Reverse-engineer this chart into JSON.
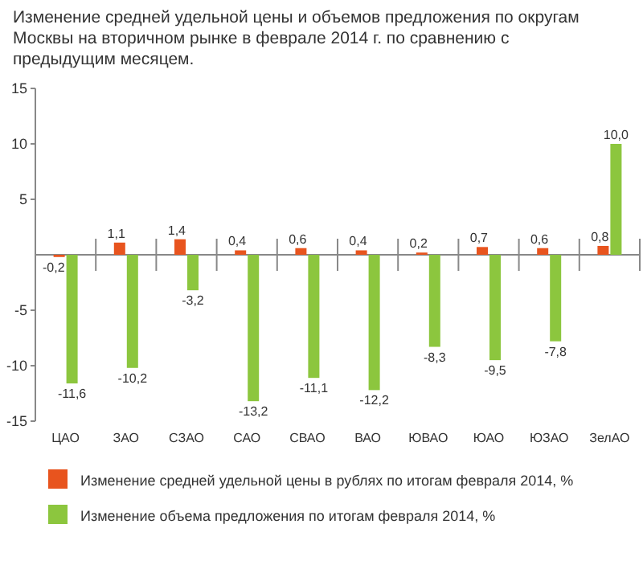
{
  "chart_data": {
    "type": "bar",
    "title": "Изменение средней удельной цены и объемов предложения по округам Москвы на вторичном рынке в феврале 2014 г. по сравнению с предыдущим месяцем.",
    "categories": [
      "ЦАО",
      "ЗАО",
      "СЗАО",
      "САО",
      "СВАО",
      "ВАО",
      "ЮВАО",
      "ЮАО",
      "ЮЗАО",
      "ЗелАО"
    ],
    "series": [
      {
        "name": "Изменение средней удельной цены в рублях по итогам февраля 2014, %",
        "color": "#e8541e",
        "values": [
          -0.2,
          1.1,
          1.4,
          0.4,
          0.6,
          0.4,
          0.2,
          0.7,
          0.6,
          0.8
        ],
        "value_labels": [
          "-0,2",
          "1,1",
          "1,4",
          "0,4",
          "0,6",
          "0,4",
          "0,2",
          "0,7",
          "0,6",
          "0,8"
        ]
      },
      {
        "name": "Изменение объема предложения по итогам февраля 2014, %",
        "color": "#8cc63e",
        "values": [
          -11.6,
          -10.2,
          -3.2,
          -13.2,
          -11.1,
          -12.2,
          -8.3,
          -9.5,
          -7.8,
          10.0
        ],
        "value_labels": [
          "-11,6",
          "-10,2",
          "-3,2",
          "-13,2",
          "-11,1",
          "-12,2",
          "-8,3",
          "-9,5",
          "-7,8",
          "10,0"
        ]
      }
    ],
    "ylim": [
      -15,
      15
    ],
    "yticks": [
      -15,
      -10,
      -5,
      5,
      10,
      15
    ],
    "legend": "bottom",
    "grid": false
  }
}
